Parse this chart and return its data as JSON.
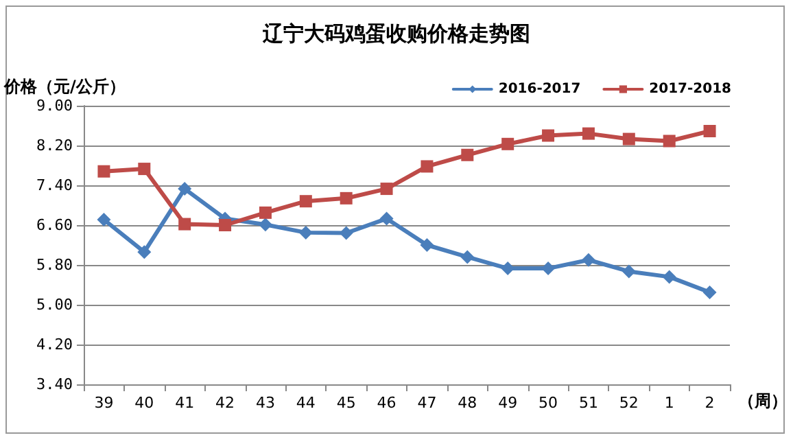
{
  "chart_data": {
    "type": "line",
    "title": "辽宁大码鸡蛋收购价格走势图",
    "ylabel": "价格（元/公斤）",
    "xlabel": "（周）",
    "categories": [
      "39",
      "40",
      "41",
      "42",
      "43",
      "44",
      "45",
      "46",
      "47",
      "48",
      "49",
      "50",
      "51",
      "52",
      "1",
      "2"
    ],
    "series": [
      {
        "name": "2016-2017",
        "color": "#4a7ebb",
        "marker": "diamond",
        "values": [
          6.71,
          6.06,
          7.33,
          6.73,
          6.61,
          6.45,
          6.44,
          6.73,
          6.2,
          5.96,
          5.73,
          5.73,
          5.9,
          5.67,
          5.56,
          5.25
        ]
      },
      {
        "name": "2017-2018",
        "color": "#be4b48",
        "marker": "square",
        "values": [
          7.68,
          7.73,
          6.62,
          6.6,
          6.85,
          7.08,
          7.14,
          7.33,
          7.78,
          8.01,
          8.23,
          8.4,
          8.44,
          8.33,
          8.29,
          8.49
        ]
      }
    ],
    "ylim": [
      3.4,
      9.0
    ],
    "yticks": [
      {
        "value": 3.4,
        "label": "3.40"
      },
      {
        "value": 4.2,
        "label": "4.20"
      },
      {
        "value": 5.0,
        "label": "5.00"
      },
      {
        "value": 5.8,
        "label": "5.80"
      },
      {
        "value": 6.6,
        "label": "6.60"
      },
      {
        "value": 7.4,
        "label": "7.40"
      },
      {
        "value": 8.2,
        "label": "8.20"
      },
      {
        "value": 9.0,
        "label": "9.00"
      }
    ],
    "grid": "y",
    "legend": "top right",
    "line_style": "solid"
  }
}
